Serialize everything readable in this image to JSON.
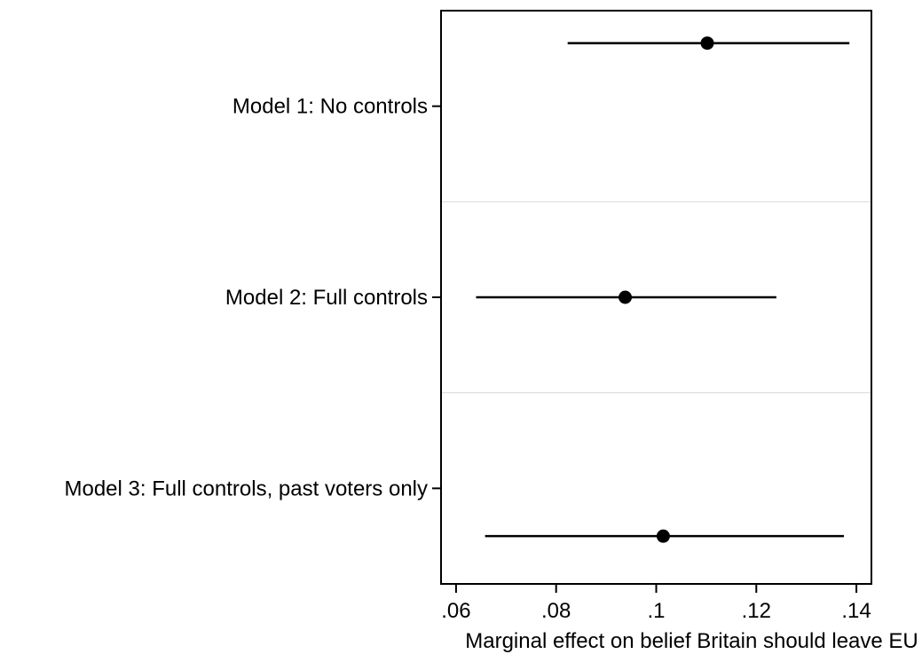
{
  "chart_data": {
    "type": "scatter",
    "subtype": "coefficient-plot-horizontal",
    "title": "",
    "xlabel": "Marginal effect on belief Britain should leave EU",
    "ylabel": "",
    "xlim": [
      0.057,
      0.143
    ],
    "xticks": [
      {
        "value": 0.06,
        "label": ".06"
      },
      {
        "value": 0.08,
        "label": ".08"
      },
      {
        "value": 0.1,
        "label": ".1"
      },
      {
        "value": 0.12,
        "label": ".12"
      },
      {
        "value": 0.14,
        "label": ".14"
      }
    ],
    "grid": false,
    "legend": "none",
    "categories": [
      "Model 1: No controls",
      "Model 2: Full controls",
      "Model 3: Full controls, past voters only"
    ],
    "estimates": [
      {
        "category": "Model 1: No controls",
        "estimate": 0.1102,
        "ci_low": 0.0823,
        "ci_high": 0.1386
      },
      {
        "category": "Model 2: Full controls",
        "estimate": 0.0938,
        "ci_low": 0.064,
        "ci_high": 0.124
      },
      {
        "category": "Model 3: Full controls, past voters only",
        "estimate": 0.1014,
        "ci_low": 0.0658,
        "ci_high": 0.1375
      }
    ],
    "colors": {
      "marker": "#000000",
      "line": "#000000",
      "separator": "#d9d9d9",
      "frame": "#000000"
    }
  }
}
